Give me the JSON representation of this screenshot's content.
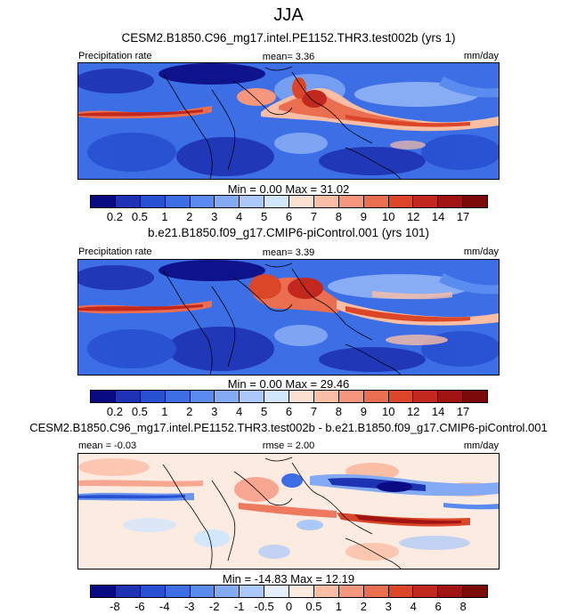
{
  "title": "JJA",
  "panels": [
    {
      "title": "CESM2.B1850.C96_mg17.intel.PE1152.THR3.test002b (yrs 1)",
      "left_label": "Precipitation rate",
      "center_label": "mean=  3.36",
      "units": "mm/day",
      "minmax": "Min =   0.00 Max =  31.02"
    },
    {
      "title": "b.e21.B1850.f09_g17.CMIP6-piControl.001 (yrs 101)",
      "left_label": "Precipitation rate",
      "center_label": "mean=  3.39",
      "units": "mm/day",
      "minmax": "Min =   0.00 Max =  29.46"
    },
    {
      "title": "CESM2.B1850.C96_mg17.intel.PE1152.THR3.test002b - b.e21.B1850.f09_g17.CMIP6-piControl.001",
      "left_label": "mean = -0.03",
      "center_label": "rmse =  2.00",
      "units": "mm/day",
      "minmax": "Min = -14.83 Max =  12.19"
    }
  ],
  "colorbars": {
    "precip": {
      "labels": [
        "0.2",
        "0.5",
        "1",
        "2",
        "3",
        "4",
        "5",
        "6",
        "7",
        "8",
        "9",
        "10",
        "12",
        "14",
        "17"
      ],
      "colors": [
        "#0a0a82",
        "#1e32b4",
        "#2850d2",
        "#3c6ee6",
        "#5a8cf0",
        "#82aaf5",
        "#aac8fa",
        "#d2e6fc",
        "#fce1d2",
        "#fabea5",
        "#f5967d",
        "#eb6e50",
        "#dc4628",
        "#c3281e",
        "#a01414",
        "#7d0a0a"
      ]
    },
    "diff": {
      "labels": [
        "-8",
        "-6",
        "-4",
        "-3",
        "-2",
        "-1",
        "-0.5",
        "0",
        "0.5",
        "1",
        "2",
        "3",
        "4",
        "6",
        "8"
      ],
      "colors": [
        "#0a0a82",
        "#1e32b4",
        "#2850d2",
        "#3c6ee6",
        "#5a8cf0",
        "#82aaf5",
        "#aac8fa",
        "#e6f0fc",
        "#fcebe1",
        "#fabea5",
        "#f5967d",
        "#eb6e50",
        "#dc4628",
        "#c3281e",
        "#a01414",
        "#7d0a0a"
      ]
    }
  }
}
